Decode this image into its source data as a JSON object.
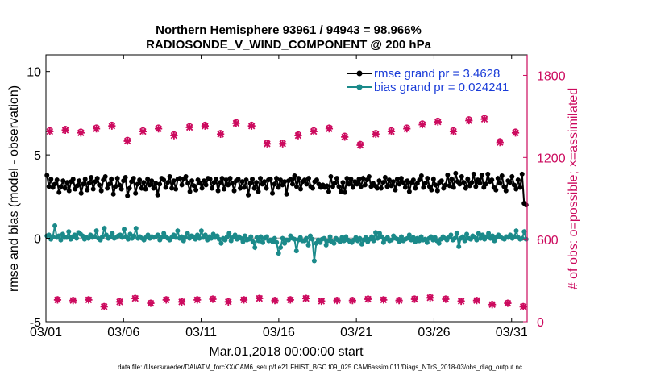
{
  "chart_data": {
    "type": "line",
    "title": "Northern Hemisphere 93961 / 94943 = 98.966%",
    "subtitle": "RADIOSONDE_V_WIND_COMPONENT @ 200 hPa",
    "xlabel": "Mar.01,2018 00:00:00 start",
    "ylabel": "rmse and bias (model - observation)",
    "ylabel_right": "# of obs: o=possible; ×=assimilated",
    "x_tick_labels": [
      "03/01",
      "03/06",
      "03/11",
      "03/16",
      "03/21",
      "03/26",
      "03/31"
    ],
    "x_tick_days": [
      0,
      5,
      10,
      15,
      20,
      25,
      30
    ],
    "xlim_days": [
      0,
      31
    ],
    "ylim": [
      -5,
      11
    ],
    "y_ticks": [
      -5,
      0,
      5,
      10
    ],
    "y_tick_labels": [
      "-5",
      "0",
      "5",
      "10"
    ],
    "ylim_right": [
      0,
      1950
    ],
    "y_ticks_right": [
      0,
      600,
      1200,
      1800
    ],
    "y_tick_labels_right": [
      "0",
      "600",
      "1200",
      "1800"
    ],
    "legend_position": "top-right",
    "series": [
      {
        "name": "rmse",
        "legend_label": "rmse grand pr = 3.4628",
        "color": "#000000",
        "axis": "left",
        "values": [
          3.78,
          3.1,
          3.55,
          3.05,
          3.25,
          3.5,
          2.75,
          3.1,
          3.45,
          3.0,
          3.35,
          2.85,
          3.4,
          3.55,
          2.95,
          3.15,
          3.45,
          2.7,
          3.25,
          3.55,
          2.9,
          3.3,
          3.65,
          2.95,
          3.4,
          3.6,
          3.2,
          2.85,
          3.5,
          3.7,
          3.0,
          3.25,
          3.55,
          2.65,
          3.1,
          3.6,
          3.2,
          2.95,
          3.45,
          3.65,
          2.55,
          3.0,
          3.4,
          3.6,
          2.7,
          3.25,
          3.5,
          3.0,
          3.35,
          2.95,
          3.55,
          3.2,
          3.45,
          3.0,
          3.3,
          2.6,
          3.25,
          3.6,
          3.5,
          3.05,
          3.35,
          3.7,
          3.0,
          3.45,
          2.95,
          3.55,
          3.6,
          3.2,
          3.55,
          3.7,
          3.3,
          2.8,
          3.45,
          3.15,
          2.9,
          3.5,
          3.3,
          3.0,
          3.45,
          3.2,
          3.6,
          3.55,
          3.0,
          3.35,
          3.55,
          2.85,
          3.35,
          3.6,
          2.95,
          3.5,
          3.2,
          3.6,
          3.3,
          2.85,
          3.45,
          3.55,
          3.0,
          3.4,
          3.05,
          3.5,
          2.6,
          3.3,
          3.55,
          3.0,
          3.35,
          2.8,
          3.6,
          3.25,
          3.4,
          3.0,
          3.5,
          3.55,
          2.7,
          3.25,
          3.6,
          3.05,
          3.5,
          3.2,
          3.4,
          2.65,
          3.45,
          3.55,
          3.25,
          3.75,
          3.1,
          3.6,
          2.95,
          3.4,
          3.5,
          3.25,
          3.6,
          3.1,
          3.0,
          3.4,
          3.5,
          3.25,
          3.05,
          3.2,
          3.05,
          3.15,
          2.8,
          3.7,
          3.1,
          3.3,
          3.6,
          3.1,
          2.8,
          3.35,
          2.75,
          3.6,
          3.25,
          3.55,
          3.05,
          3.4,
          3.25,
          3.55,
          3.1,
          3.6,
          3.2,
          3.5,
          3.7,
          3.1,
          3.3,
          3.15,
          3.0,
          3.45,
          3.0,
          3.35,
          3.65,
          3.1,
          3.5,
          3.15,
          3.4,
          2.9,
          3.55,
          3.25,
          3.6,
          3.35,
          3.05,
          3.45,
          2.8,
          3.35,
          3.5,
          3.0,
          3.3,
          3.5,
          3.75,
          3.05,
          3.3,
          3.6,
          3.1,
          2.9,
          3.55,
          3.2,
          2.85,
          3.35,
          3.45,
          3.0,
          3.2,
          3.8,
          3.15,
          3.55,
          3.05,
          3.9,
          3.4,
          3.25,
          3.7,
          3.35,
          3.0,
          3.55,
          3.15,
          3.35,
          3.85,
          3.1,
          3.5,
          3.3,
          3.8,
          3.05,
          3.25,
          3.85,
          3.4,
          3.5,
          3.05,
          2.9,
          3.6,
          3.3,
          3.75,
          3.1,
          2.85,
          3.45,
          3.35,
          3.7,
          3.2,
          2.95,
          3.5,
          3.05,
          3.85,
          2.1,
          2.0
        ]
      },
      {
        "name": "bias",
        "legend_label": "bias grand pr = 0.024241",
        "color": "#1b8a8a",
        "axis": "left",
        "values": [
          0.15,
          0.2,
          -0.05,
          0.1,
          0.75,
          0.05,
          0.15,
          -0.1,
          0.25,
          0.05,
          0.05,
          0.4,
          -0.05,
          0.1,
          0.2,
          0.0,
          0.35,
          0.25,
          0.15,
          -0.05,
          0.05,
          0.0,
          0.2,
          0.05,
          0.1,
          0.45,
          0.0,
          -0.1,
          0.1,
          0.6,
          0.2,
          0.0,
          0.1,
          0.3,
          0.0,
          0.05,
          0.15,
          0.2,
          0.05,
          0.55,
          0.1,
          -0.05,
          0.25,
          0.0,
          0.15,
          0.6,
          0.0,
          0.1,
          0.0,
          -0.1,
          0.05,
          0.2,
          0.0,
          0.1,
          0.05,
          0.1,
          0.2,
          -0.1,
          0.05,
          0.3,
          0.1,
          0.0,
          -0.1,
          0.05,
          0.2,
          0.05,
          0.45,
          0.0,
          0.1,
          -0.15,
          0.05,
          0.3,
          0.0,
          0.15,
          0.1,
          -0.05,
          0.2,
          0.0,
          0.45,
          0.05,
          0.2,
          -0.1,
          0.1,
          0.0,
          0.25,
          0.05,
          0.15,
          -0.05,
          -0.3,
          0.0,
          -0.1,
          0.1,
          0.3,
          -0.15,
          0.05,
          0.2,
          -0.05,
          0.1,
          0.0,
          -0.2,
          0.15,
          -0.1,
          -0.05,
          0.1,
          -0.2,
          -0.55,
          0.05,
          -0.15,
          0.1,
          -0.25,
          0.0,
          0.1,
          -0.15,
          -0.1,
          -0.2,
          0.0,
          -0.25,
          -0.9,
          -0.55,
          0.0,
          -0.3,
          -0.1,
          -0.1,
          0.15,
          0.0,
          -0.05,
          -0.75,
          -0.1,
          0.05,
          -0.15,
          -0.15,
          0.0,
          -0.4,
          0.15,
          -0.05,
          -1.35,
          -0.3,
          -0.1,
          -0.25,
          -0.05,
          0.0,
          -0.4,
          -0.15,
          0.1,
          -0.2,
          -0.3,
          0.0,
          -0.1,
          -0.2,
          0.05,
          -0.15,
          0.1,
          -0.1,
          -0.2,
          -0.25,
          -0.1,
          0.05,
          -0.15,
          0.0,
          -0.35,
          -0.1,
          0.05,
          -0.2,
          -0.05,
          0.1,
          -0.15,
          0.35,
          0.0,
          0.3,
          0.1,
          -0.25,
          -0.05,
          0.05,
          -0.15,
          -0.1,
          0.15,
          0.0,
          -0.05,
          -0.2,
          0.1,
          -0.15,
          -0.05,
          0.0,
          0.2,
          -0.1,
          0.05,
          -0.2,
          0.0,
          -0.15,
          0.1,
          -0.1,
          -0.05,
          -0.25,
          0.0,
          0.1,
          -0.1,
          0.05,
          -0.15,
          -0.3,
          -0.05,
          0.1,
          0.0,
          -0.1,
          0.05,
          0.2,
          -0.1,
          0.0,
          0.3,
          -0.5,
          0.0,
          0.1,
          -0.15,
          0.25,
          0.0,
          -0.05,
          0.15,
          0.05,
          -0.1,
          0.3,
          0.0,
          0.2,
          -0.05,
          0.1,
          0.3,
          0.0,
          0.15,
          -0.15,
          0.05,
          0.2,
          0.1,
          0.0,
          -0.05,
          0.1,
          0.05,
          0.2,
          0.0,
          0.1,
          0.45,
          0.05,
          -0.05,
          0.0,
          0.4,
          -0.05
        ]
      },
      {
        "name": "# obs possible (o)",
        "color": "#cc0a5e",
        "axis": "right",
        "marker": "o",
        "pattern_note": "counts alternate by cycle: 00Z high, 12Z low",
        "values_00z": [
          1400,
          1410,
          1390,
          1420,
          1440,
          1330,
          1400,
          1420,
          1370,
          1430,
          1440,
          1380,
          1460,
          1440,
          1310,
          1310,
          1370,
          1400,
          1420,
          1360,
          1300,
          1380,
          1400,
          1420,
          1450,
          1470,
          1400,
          1480,
          1490,
          1320,
          1390
        ],
        "values_12z": [
          165,
          160,
          165,
          115,
          150,
          175,
          140,
          165,
          150,
          165,
          170,
          150,
          165,
          175,
          160,
          165,
          175,
          155,
          160,
          160,
          170,
          165,
          160,
          170,
          180,
          170,
          155,
          160,
          130,
          140,
          115
        ]
      },
      {
        "name": "# obs assimilated (×)",
        "color": "#cc0a5e",
        "axis": "right",
        "marker": "x",
        "values_00z": [
          1390,
          1400,
          1380,
          1410,
          1430,
          1320,
          1390,
          1410,
          1360,
          1420,
          1430,
          1370,
          1450,
          1430,
          1300,
          1300,
          1360,
          1390,
          1410,
          1350,
          1290,
          1370,
          1390,
          1410,
          1440,
          1460,
          1390,
          1470,
          1480,
          1310,
          1380
        ],
        "values_12z": [
          160,
          155,
          160,
          110,
          145,
          170,
          135,
          160,
          145,
          160,
          165,
          145,
          160,
          170,
          155,
          160,
          170,
          150,
          155,
          155,
          165,
          160,
          155,
          165,
          175,
          165,
          150,
          155,
          125,
          135,
          110
        ]
      }
    ],
    "reference_line": {
      "y": 0,
      "color": "#aaaaaa"
    },
    "footer": "data file: /Users/raeder/DAI/ATM_forcXX/CAM6_setup/f.e21.FHIST_BGC.f09_025.CAM6assim.011/Diags_NTrS_2018-03/obs_diag_output.nc",
    "right_axis_color": "#cc0a5e",
    "legend_text_color": "#1a3cd8"
  }
}
